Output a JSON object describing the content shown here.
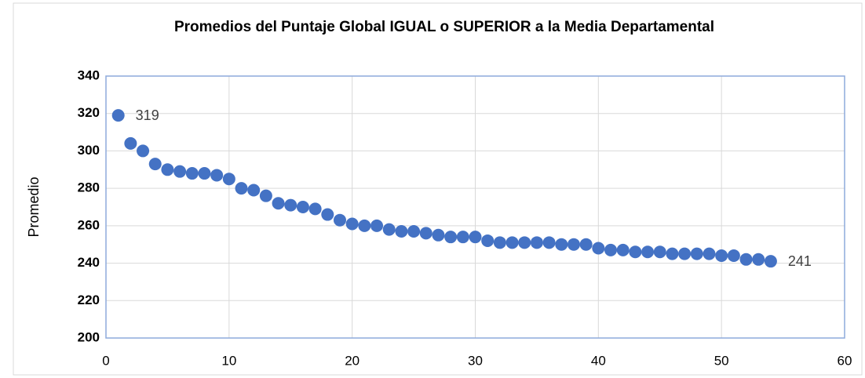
{
  "chart_data": {
    "type": "scatter",
    "title": "Promedios del Puntaje Global IGUAL o SUPERIOR a la Media Departamental",
    "y_label": "Promedio",
    "x": [
      1,
      2,
      3,
      4,
      5,
      6,
      7,
      8,
      9,
      10,
      11,
      12,
      13,
      14,
      15,
      16,
      17,
      18,
      19,
      20,
      21,
      22,
      23,
      24,
      25,
      26,
      27,
      28,
      29,
      30,
      31,
      32,
      33,
      34,
      35,
      36,
      37,
      38,
      39,
      40,
      41,
      42,
      43,
      44,
      45,
      46,
      47,
      48,
      49,
      50,
      51,
      52,
      53,
      54
    ],
    "series": [
      {
        "name": "Promedio",
        "color": "#4472c4",
        "values": [
          319,
          304,
          300,
          293,
          290,
          289,
          288,
          288,
          287,
          285,
          280,
          279,
          276,
          272,
          271,
          270,
          269,
          266,
          263,
          261,
          260,
          260,
          258,
          257,
          257,
          256,
          255,
          254,
          254,
          254,
          252,
          251,
          251,
          251,
          251,
          251,
          250,
          250,
          250,
          248,
          247,
          247,
          246,
          246,
          246,
          245,
          245,
          245,
          245,
          244,
          244,
          242,
          242,
          241
        ]
      }
    ],
    "label_points": [
      0,
      53
    ],
    "xlim": [
      0,
      60
    ],
    "xticks": [
      0,
      10,
      20,
      30,
      40,
      50,
      60
    ],
    "ylim": [
      200,
      340
    ],
    "yticks": [
      200,
      220,
      240,
      260,
      280,
      300,
      320,
      340
    ],
    "grid": true
  }
}
